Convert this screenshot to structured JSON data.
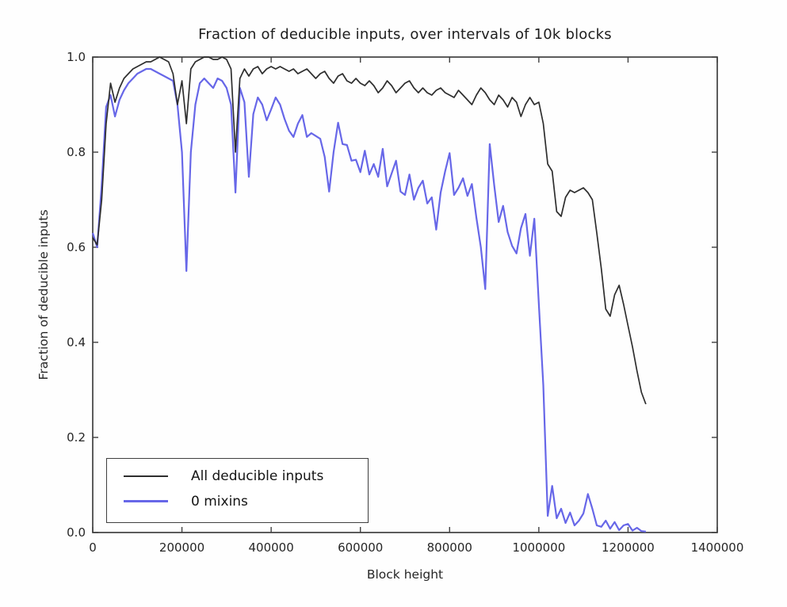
{
  "chart_data": {
    "type": "line",
    "title": "Fraction of deducible inputs, over intervals of 10k blocks",
    "xlabel": "Block height",
    "ylabel": "Fraction of deducible inputs",
    "xlim": [
      0,
      1400000
    ],
    "ylim": [
      0.0,
      1.0
    ],
    "grid": false,
    "legend_position": "lower left",
    "x_ticks": [
      0,
      200000,
      400000,
      600000,
      800000,
      1000000,
      1200000,
      1400000
    ],
    "x_tick_labels": [
      "0",
      "200000",
      "400000",
      "600000",
      "800000",
      "1000000",
      "1200000",
      "1400000"
    ],
    "y_ticks": [
      0.0,
      0.2,
      0.4,
      0.6,
      0.8,
      1.0
    ],
    "y_tick_labels": [
      "0.0",
      "0.2",
      "0.4",
      "0.6",
      "0.8",
      "1.0"
    ],
    "x_start": 0,
    "x_step": 10000,
    "colors": {
      "axis": "#3f3f3f",
      "text": "#1d1d1d",
      "background": "#ffffff"
    },
    "series": [
      {
        "name": "All deducible inputs",
        "color": "#2e2e2e",
        "values": [
          0.62,
          0.605,
          0.7,
          0.86,
          0.945,
          0.905,
          0.935,
          0.955,
          0.965,
          0.975,
          0.98,
          0.985,
          0.99,
          0.99,
          0.995,
          1.0,
          0.995,
          0.99,
          0.965,
          0.9,
          0.95,
          0.86,
          0.975,
          0.99,
          0.995,
          1.0,
          1.0,
          0.995,
          0.995,
          1.0,
          0.995,
          0.975,
          0.8,
          0.955,
          0.975,
          0.96,
          0.975,
          0.98,
          0.965,
          0.975,
          0.98,
          0.975,
          0.98,
          0.975,
          0.97,
          0.975,
          0.965,
          0.97,
          0.975,
          0.965,
          0.955,
          0.965,
          0.97,
          0.955,
          0.945,
          0.96,
          0.965,
          0.95,
          0.945,
          0.955,
          0.945,
          0.94,
          0.95,
          0.94,
          0.925,
          0.935,
          0.95,
          0.94,
          0.925,
          0.935,
          0.945,
          0.95,
          0.935,
          0.925,
          0.935,
          0.925,
          0.92,
          0.93,
          0.935,
          0.925,
          0.92,
          0.915,
          0.93,
          0.92,
          0.91,
          0.9,
          0.92,
          0.935,
          0.925,
          0.91,
          0.9,
          0.92,
          0.91,
          0.895,
          0.915,
          0.905,
          0.875,
          0.9,
          0.915,
          0.9,
          0.905,
          0.86,
          0.775,
          0.76,
          0.675,
          0.665,
          0.705,
          0.72,
          0.715,
          0.72,
          0.725,
          0.715,
          0.7,
          0.63,
          0.555,
          0.47,
          0.455,
          0.5,
          0.52,
          0.48,
          0.435,
          0.39,
          0.34,
          0.295,
          0.27
        ]
      },
      {
        "name": "0 mixins",
        "color": "#6767e8",
        "values": [
          0.63,
          0.6,
          0.73,
          0.895,
          0.92,
          0.875,
          0.91,
          0.93,
          0.945,
          0.955,
          0.965,
          0.97,
          0.975,
          0.975,
          0.97,
          0.965,
          0.96,
          0.955,
          0.95,
          0.9,
          0.8,
          0.55,
          0.8,
          0.9,
          0.945,
          0.955,
          0.945,
          0.935,
          0.955,
          0.95,
          0.935,
          0.9,
          0.715,
          0.935,
          0.905,
          0.748,
          0.88,
          0.915,
          0.9,
          0.867,
          0.89,
          0.915,
          0.9,
          0.87,
          0.845,
          0.832,
          0.86,
          0.878,
          0.832,
          0.84,
          0.834,
          0.828,
          0.79,
          0.717,
          0.8,
          0.862,
          0.817,
          0.815,
          0.782,
          0.784,
          0.758,
          0.803,
          0.753,
          0.775,
          0.748,
          0.807,
          0.728,
          0.755,
          0.782,
          0.717,
          0.71,
          0.753,
          0.7,
          0.725,
          0.74,
          0.692,
          0.705,
          0.637,
          0.715,
          0.76,
          0.798,
          0.71,
          0.725,
          0.745,
          0.708,
          0.733,
          0.662,
          0.6,
          0.512,
          0.817,
          0.73,
          0.653,
          0.687,
          0.632,
          0.603,
          0.587,
          0.64,
          0.67,
          0.582,
          0.66,
          0.48,
          0.31,
          0.035,
          0.098,
          0.03,
          0.05,
          0.02,
          0.042,
          0.015,
          0.025,
          0.04,
          0.081,
          0.05,
          0.015,
          0.012,
          0.025,
          0.008,
          0.022,
          0.005,
          0.015,
          0.018,
          0.004,
          0.01,
          0.003,
          0.002
        ]
      }
    ]
  }
}
